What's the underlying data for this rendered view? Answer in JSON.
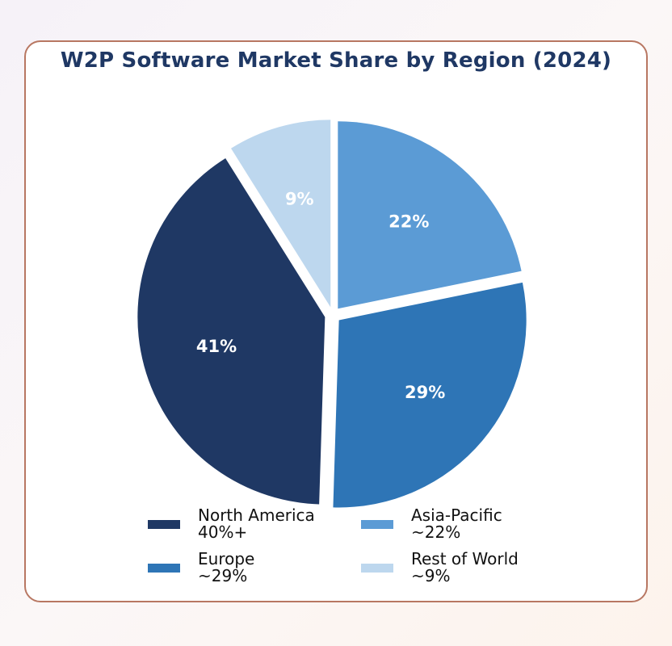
{
  "chart_data": {
    "type": "pie",
    "title": "W2P Software Market Share by Region (2024)",
    "slices": [
      {
        "name": "North America",
        "value": 41,
        "label": "41%",
        "legend_value": "40%+",
        "color": "#1f3864"
      },
      {
        "name": "Europe",
        "value": 29,
        "label": "29%",
        "legend_value": "~29%",
        "color": "#2e75b6"
      },
      {
        "name": "Asia-Pacific",
        "value": 22,
        "label": "22%",
        "legend_value": "~22%",
        "color": "#5b9bd5"
      },
      {
        "name": "Rest of World",
        "value": 9,
        "label": "9%",
        "legend_value": "~9%",
        "color": "#bdd7ee"
      }
    ],
    "legend_placement": "bottom",
    "exploded": true
  }
}
